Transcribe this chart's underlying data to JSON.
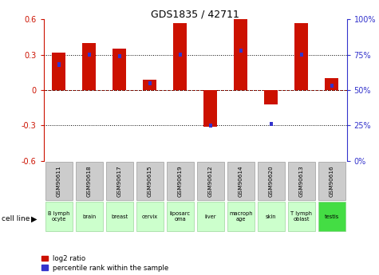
{
  "title": "GDS1835 / 42711",
  "samples": [
    "GSM90611",
    "GSM90618",
    "GSM90617",
    "GSM90615",
    "GSM90619",
    "GSM90612",
    "GSM90614",
    "GSM90620",
    "GSM90613",
    "GSM90616"
  ],
  "cell_lines": [
    "B lymph\nocyte",
    "brain",
    "breast",
    "cervix",
    "liposarc\noma",
    "liver",
    "macroph\nage",
    "skin",
    "T lymph\noblast",
    "testis"
  ],
  "cell_line_colors": [
    "#ccffcc",
    "#ccffcc",
    "#ccffcc",
    "#ccffcc",
    "#ccffcc",
    "#ccffcc",
    "#ccffcc",
    "#ccffcc",
    "#ccffcc",
    "#44dd44"
  ],
  "log2_ratio": [
    0.32,
    0.4,
    0.35,
    0.09,
    0.57,
    -0.31,
    0.61,
    -0.12,
    0.57,
    0.1
  ],
  "percentile_pct": [
    68,
    75,
    74,
    55,
    75,
    25,
    78,
    26,
    75,
    53
  ],
  "bar_color": "#cc1100",
  "blue_color": "#3333cc",
  "ylim_left": [
    -0.6,
    0.6
  ],
  "yticks_left": [
    -0.6,
    -0.3,
    0.0,
    0.3,
    0.6
  ],
  "ytick_labels_left": [
    "-0.6",
    "-0.3",
    "0",
    "0.3",
    "0.6"
  ],
  "ytick_labels_right": [
    "0%",
    "25%",
    "50%",
    "75%",
    "100%"
  ]
}
